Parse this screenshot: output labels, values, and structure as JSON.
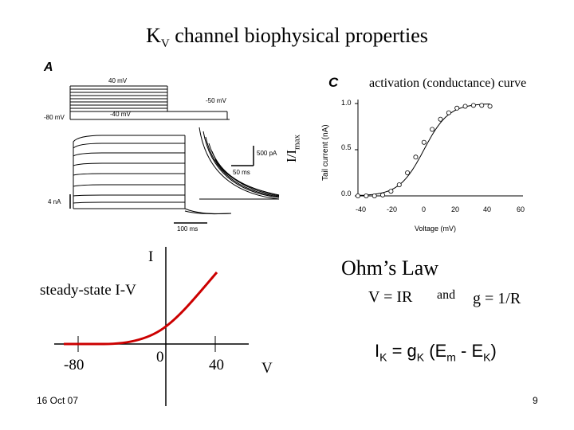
{
  "slide": {
    "title_main": "K",
    "title_sub": "V",
    "title_rest": " channel biophysical properties",
    "footer_date": "16 Oct 07",
    "page_number": "9"
  },
  "panel_a": {
    "label": "A",
    "v_40": "40 mV",
    "v_neg50": "-50 mV",
    "v_neg80": "-80 mV",
    "v_neg40": "-40 mV",
    "scale_current": "4 nA",
    "scale_time": "100 ms",
    "inset_current": "500 pA",
    "inset_time": "50 ms"
  },
  "panel_c": {
    "label": "C",
    "title": "activation (conductance) curve",
    "ylabel_main": "I/I",
    "ylabel_sub": "max",
    "ylabel_axis": "Tail current (nA)",
    "xlabel": "Voltage (mV)",
    "yticks": [
      "1.0",
      "0.5",
      "0.0"
    ],
    "xticks": [
      "-40",
      "-20",
      "0",
      "20",
      "40",
      "60"
    ],
    "chart_data": {
      "type": "scatter",
      "x": [
        -40,
        -35,
        -30,
        -25,
        -20,
        -15,
        -10,
        -5,
        0,
        5,
        10,
        15,
        20,
        25,
        30,
        35,
        40
      ],
      "y": [
        0.0,
        0.0,
        0.0,
        0.01,
        0.05,
        0.12,
        0.25,
        0.42,
        0.58,
        0.72,
        0.83,
        0.9,
        0.95,
        0.97,
        0.98,
        0.98,
        0.97
      ],
      "xlim": [
        -40,
        60
      ],
      "ylim": [
        0.0,
        1.0
      ]
    }
  },
  "iv": {
    "label_steady": "steady-state I-V",
    "y_axis_label": "I",
    "x_axis_label": "V",
    "tick_neg80": "-80",
    "tick_0": "0",
    "tick_40": "40"
  },
  "ohm": {
    "title": "Ohm’s Law",
    "eq1": "V = IR",
    "and": "and",
    "eq2": "g = 1/R",
    "eq3_i": "I",
    "eq3_k1": "K",
    "eq3_mid": " = g",
    "eq3_k2": "K",
    "eq3_paren": " (E",
    "eq3_m": "m",
    "eq3_minus": " - E",
    "eq3_k3": "K",
    "eq3_close": ")"
  }
}
